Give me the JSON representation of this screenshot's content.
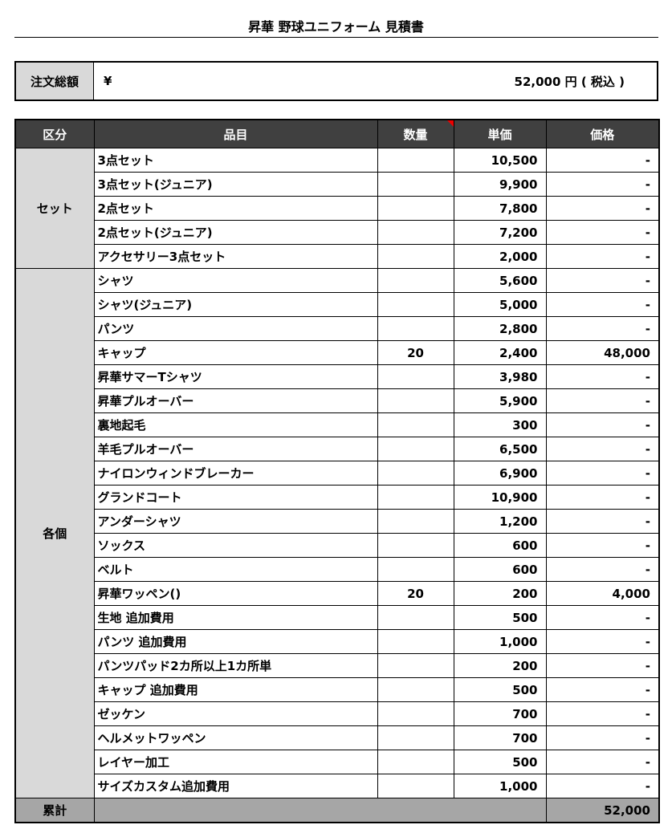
{
  "title": "昇華  野球ユニフォーム 見積書",
  "summary": {
    "label": "注文総額",
    "currency": "¥",
    "amount": "52,000  円 ( 税込 )"
  },
  "headers": [
    "区分",
    "品目",
    "数量",
    "単価",
    "価格"
  ],
  "comment_flag_color": "#ee0000",
  "groups": [
    {
      "category": "セット",
      "items": [
        {
          "name": "3点セット",
          "qty": "",
          "unit": "10,500",
          "price": "-"
        },
        {
          "name": "3点セット(ジュニア)",
          "qty": "",
          "unit": "9,900",
          "price": "-"
        },
        {
          "name": "2点セット",
          "qty": "",
          "unit": "7,800",
          "price": "-"
        },
        {
          "name": "2点セット(ジュニア)",
          "qty": "",
          "unit": "7,200",
          "price": "-"
        },
        {
          "name": "アクセサリー3点セット",
          "qty": "",
          "unit": "2,000",
          "price": "-"
        }
      ]
    },
    {
      "category": "各個",
      "items": [
        {
          "name": "シャツ",
          "qty": "",
          "unit": "5,600",
          "price": "-"
        },
        {
          "name": "シャツ(ジュニア)",
          "qty": "",
          "unit": "5,000",
          "price": "-"
        },
        {
          "name": "パンツ",
          "qty": "",
          "unit": "2,800",
          "price": "-"
        },
        {
          "name": "キャップ",
          "qty": "20",
          "unit": "2,400",
          "price": "48,000"
        },
        {
          "name": "昇華サマーTシャツ",
          "qty": "",
          "unit": "3,980",
          "price": "-"
        },
        {
          "name": "昇華プルオーバー",
          "qty": "",
          "unit": "5,900",
          "price": "-"
        },
        {
          "name": "裏地起毛",
          "qty": "",
          "unit": "300",
          "price": "-"
        },
        {
          "name": "羊毛プルオーバー",
          "qty": "",
          "unit": "6,500",
          "price": "-"
        },
        {
          "name": "ナイロンウィンドブレーカー",
          "qty": "",
          "unit": "6,900",
          "price": "-"
        },
        {
          "name": "グランドコート",
          "qty": "",
          "unit": "10,900",
          "price": "-"
        },
        {
          "name": "アンダーシャツ",
          "qty": "",
          "unit": "1,200",
          "price": "-"
        },
        {
          "name": "ソックス",
          "qty": "",
          "unit": "600",
          "price": "-"
        },
        {
          "name": "ベルト",
          "qty": "",
          "unit": "600",
          "price": "-"
        },
        {
          "name": "昇華ワッペン()",
          "qty": "20",
          "unit": "200",
          "price": "4,000"
        },
        {
          "name": "生地 追加費用",
          "qty": "",
          "unit": "500",
          "price": "-"
        },
        {
          "name": "パンツ 追加費用",
          "qty": "",
          "unit": "1,000",
          "price": "-"
        },
        {
          "name": "パンツパッド2カ所以上1カ所単",
          "qty": "",
          "unit": "200",
          "price": "-"
        },
        {
          "name": "キャップ 追加費用",
          "qty": "",
          "unit": "500",
          "price": "-"
        },
        {
          "name": "ゼッケン",
          "qty": "",
          "unit": "700",
          "price": "-"
        },
        {
          "name": "ヘルメットワッペン",
          "qty": "",
          "unit": "700",
          "price": "-"
        },
        {
          "name": "レイヤー加工",
          "qty": "",
          "unit": "500",
          "price": "-"
        },
        {
          "name": "サイズカスタム追加費用",
          "qty": "",
          "unit": "1,000",
          "price": "-"
        }
      ]
    }
  ],
  "total": {
    "label": "累計",
    "value": "52,000"
  }
}
